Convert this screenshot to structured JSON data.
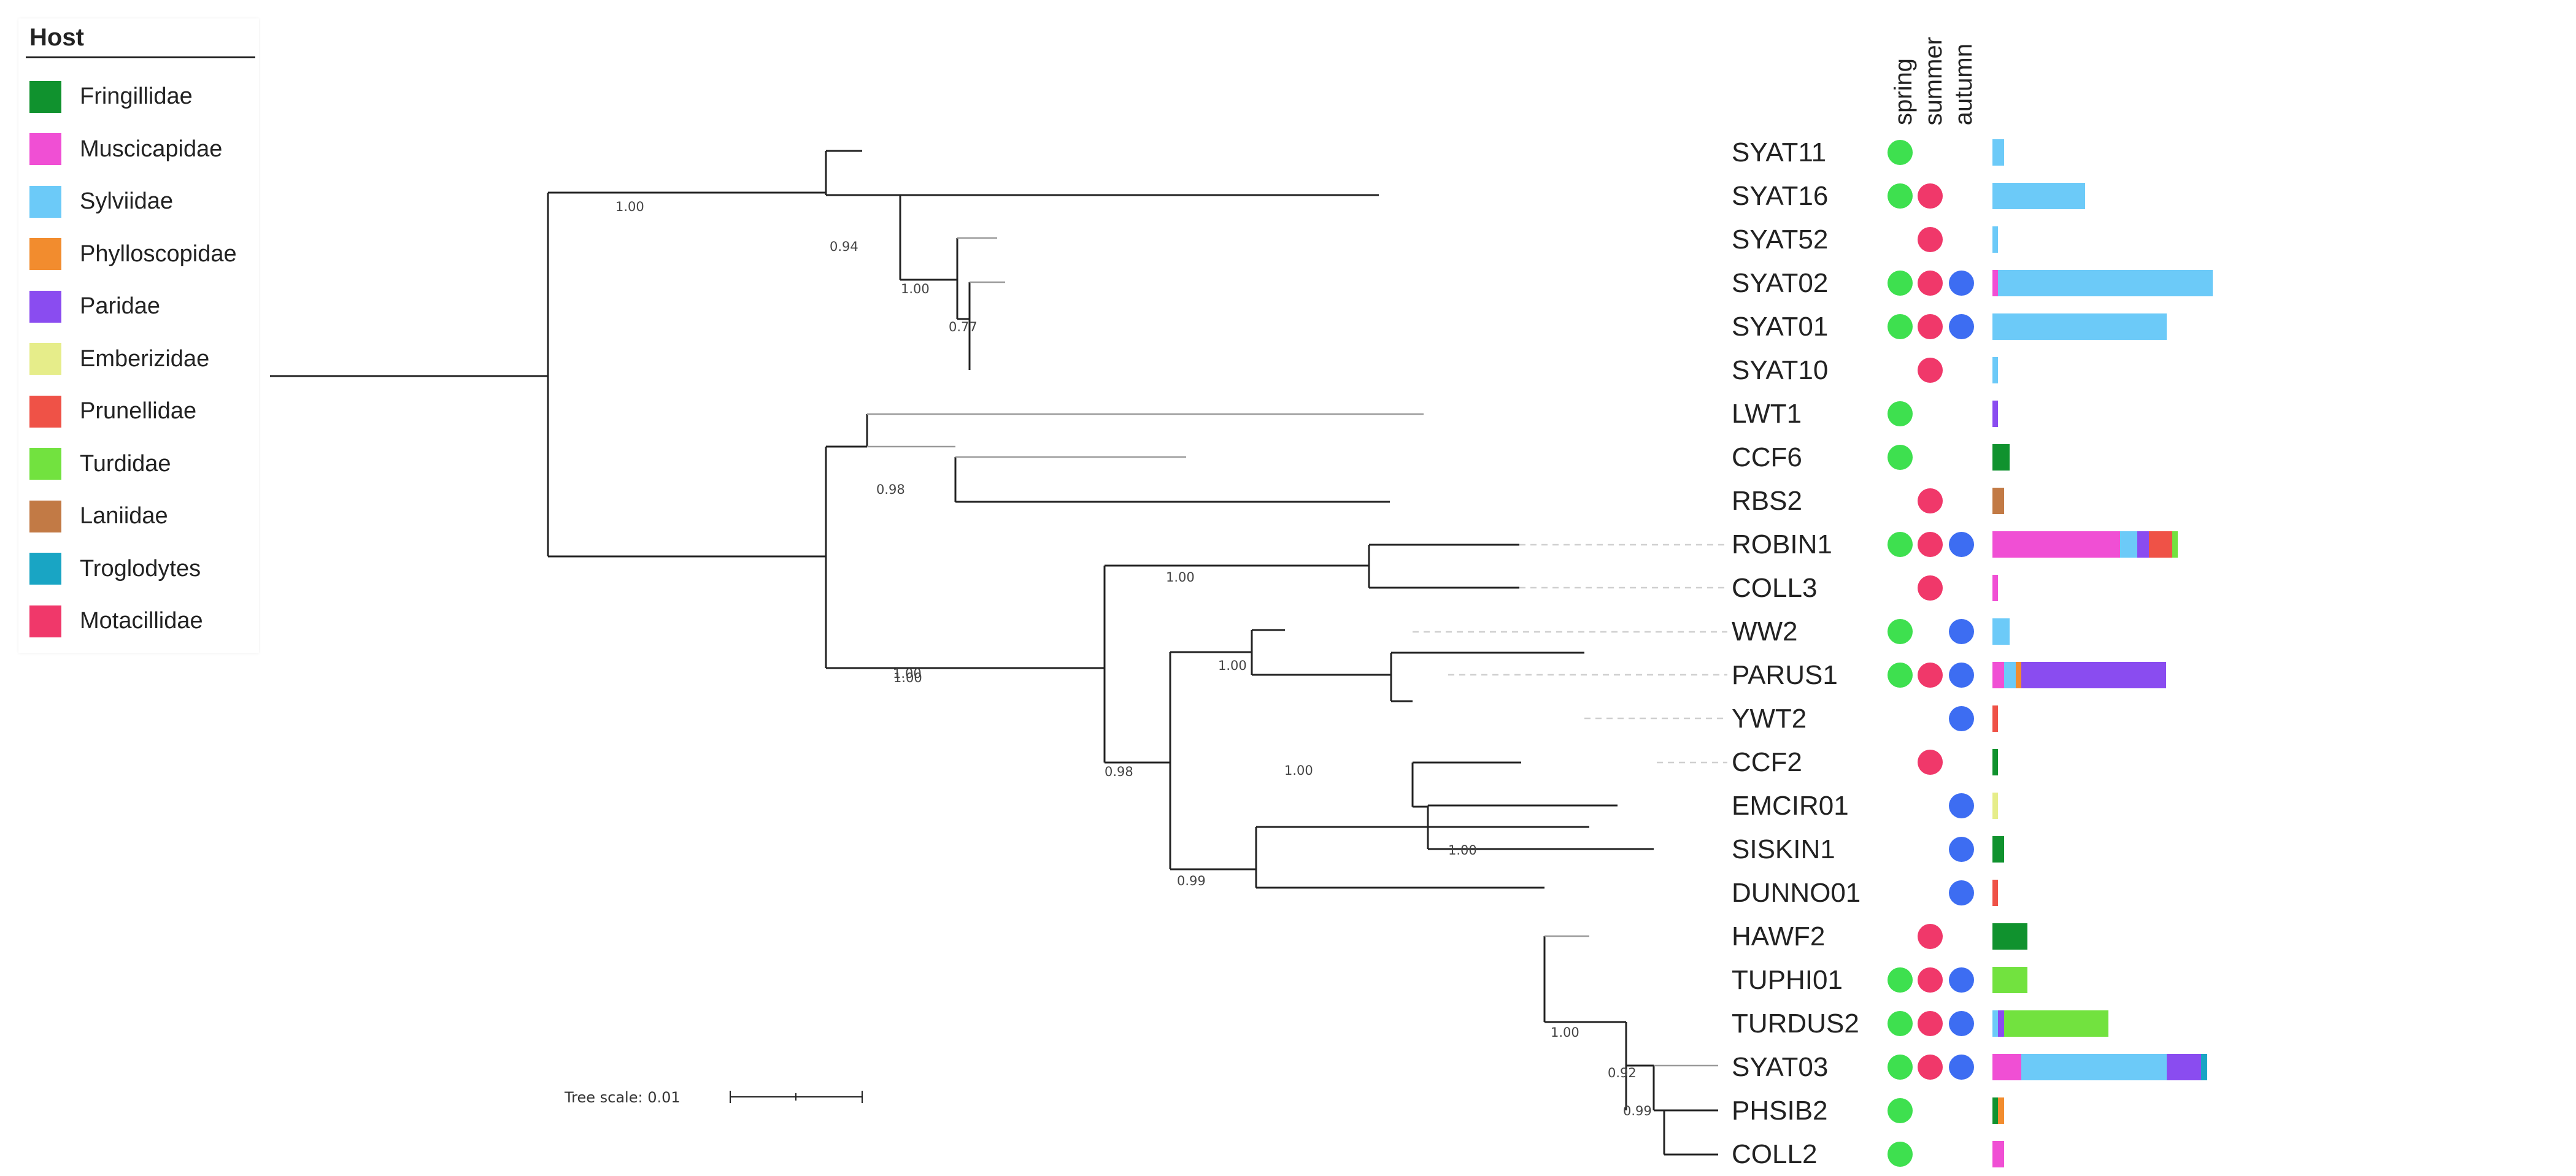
{
  "legend": {
    "title": "Host",
    "items": [
      {
        "label": "Fringillidae",
        "color": "#10922e"
      },
      {
        "label": "Muscicapidae",
        "color": "#f04fd4"
      },
      {
        "label": "Sylviidae",
        "color": "#6ccaf8"
      },
      {
        "label": "Phylloscopidae",
        "color": "#f28c2e"
      },
      {
        "label": "Paridae",
        "color": "#8a4cf0"
      },
      {
        "label": "Emberizidae",
        "color": "#e6ed8a"
      },
      {
        "label": "Prunellidae",
        "color": "#ef5247"
      },
      {
        "label": "Turdidae",
        "color": "#72e23f"
      },
      {
        "label": "Laniidae",
        "color": "#c27a45"
      },
      {
        "label": "Troglodytes",
        "color": "#19a5c4"
      },
      {
        "label": "Motacillidae",
        "color": "#f0386a"
      }
    ]
  },
  "seasons": {
    "headers": [
      "spring",
      "summer",
      "autumn"
    ],
    "colors": {
      "spring": "#3ee04f",
      "summer": "#f0386a",
      "autumn": "#3d6df2"
    }
  },
  "tree": {
    "support_values": [
      "1.00",
      "0.94",
      "1.00",
      "0.77",
      "0.98",
      "1.00",
      "1.00",
      "1.00",
      "0.98",
      "1.00",
      "1.00",
      "0.99",
      "1.00",
      "1.00",
      "0.92",
      "0.99"
    ],
    "scale_label": "Tree scale: 0.01"
  },
  "taxa": [
    {
      "label": "SYAT11",
      "spring": true,
      "summer": false,
      "autumn": false,
      "hosts": [
        {
          "family": "Sylviidae",
          "count": 2
        }
      ]
    },
    {
      "label": "SYAT16",
      "spring": true,
      "summer": true,
      "autumn": false,
      "hosts": [
        {
          "family": "Sylviidae",
          "count": 16
        }
      ]
    },
    {
      "label": "SYAT52",
      "spring": false,
      "summer": true,
      "autumn": false,
      "hosts": [
        {
          "family": "Sylviidae",
          "count": 1
        }
      ]
    },
    {
      "label": "SYAT02",
      "spring": true,
      "summer": true,
      "autumn": true,
      "hosts": [
        {
          "family": "Muscicapidae",
          "count": 1
        },
        {
          "family": "Sylviidae",
          "count": 37
        }
      ]
    },
    {
      "label": "SYAT01",
      "spring": true,
      "summer": true,
      "autumn": true,
      "hosts": [
        {
          "family": "Sylviidae",
          "count": 30
        }
      ]
    },
    {
      "label": "SYAT10",
      "spring": false,
      "summer": true,
      "autumn": false,
      "hosts": [
        {
          "family": "Sylviidae",
          "count": 1
        }
      ]
    },
    {
      "label": "LWT1",
      "spring": true,
      "summer": false,
      "autumn": false,
      "hosts": [
        {
          "family": "Paridae",
          "count": 1
        }
      ]
    },
    {
      "label": "CCF6",
      "spring": true,
      "summer": false,
      "autumn": false,
      "hosts": [
        {
          "family": "Fringillidae",
          "count": 3
        }
      ]
    },
    {
      "label": "RBS2",
      "spring": false,
      "summer": true,
      "autumn": false,
      "hosts": [
        {
          "family": "Laniidae",
          "count": 2
        }
      ]
    },
    {
      "label": "ROBIN1",
      "spring": true,
      "summer": true,
      "autumn": true,
      "hosts": [
        {
          "family": "Muscicapidae",
          "count": 22
        },
        {
          "family": "Sylviidae",
          "count": 3
        },
        {
          "family": "Paridae",
          "count": 2
        },
        {
          "family": "Prunellidae",
          "count": 4
        },
        {
          "family": "Turdidae",
          "count": 1
        }
      ]
    },
    {
      "label": "COLL3",
      "spring": false,
      "summer": true,
      "autumn": false,
      "hosts": [
        {
          "family": "Muscicapidae",
          "count": 1
        }
      ]
    },
    {
      "label": "WW2",
      "spring": true,
      "summer": false,
      "autumn": true,
      "hosts": [
        {
          "family": "Sylviidae",
          "count": 3
        }
      ]
    },
    {
      "label": "PARUS1",
      "spring": true,
      "summer": true,
      "autumn": true,
      "hosts": [
        {
          "family": "Muscicapidae",
          "count": 2
        },
        {
          "family": "Sylviidae",
          "count": 2
        },
        {
          "family": "Phylloscopidae",
          "count": 1
        },
        {
          "family": "Paridae",
          "count": 25
        }
      ]
    },
    {
      "label": "YWT2",
      "spring": false,
      "summer": false,
      "autumn": true,
      "hosts": [
        {
          "family": "Prunellidae",
          "count": 1
        }
      ]
    },
    {
      "label": "CCF2",
      "spring": false,
      "summer": true,
      "autumn": false,
      "hosts": [
        {
          "family": "Fringillidae",
          "count": 1
        }
      ]
    },
    {
      "label": "EMCIR01",
      "spring": false,
      "summer": false,
      "autumn": true,
      "hosts": [
        {
          "family": "Emberizidae",
          "count": 1
        }
      ]
    },
    {
      "label": "SISKIN1",
      "spring": false,
      "summer": false,
      "autumn": true,
      "hosts": [
        {
          "family": "Fringillidae",
          "count": 2
        }
      ]
    },
    {
      "label": "DUNNO01",
      "spring": false,
      "summer": false,
      "autumn": true,
      "hosts": [
        {
          "family": "Prunellidae",
          "count": 1
        }
      ]
    },
    {
      "label": "HAWF2",
      "spring": false,
      "summer": true,
      "autumn": false,
      "hosts": [
        {
          "family": "Fringillidae",
          "count": 6
        }
      ]
    },
    {
      "label": "TUPHI01",
      "spring": true,
      "summer": true,
      "autumn": true,
      "hosts": [
        {
          "family": "Turdidae",
          "count": 6
        }
      ]
    },
    {
      "label": "TURDUS2",
      "spring": true,
      "summer": true,
      "autumn": true,
      "hosts": [
        {
          "family": "Sylviidae",
          "count": 1
        },
        {
          "family": "Paridae",
          "count": 1
        },
        {
          "family": "Turdidae",
          "count": 18
        }
      ]
    },
    {
      "label": "SYAT03",
      "spring": true,
      "summer": true,
      "autumn": true,
      "hosts": [
        {
          "family": "Muscicapidae",
          "count": 5
        },
        {
          "family": "Sylviidae",
          "count": 25
        },
        {
          "family": "Paridae",
          "count": 6
        },
        {
          "family": "Troglodytes",
          "count": 1
        }
      ]
    },
    {
      "label": "PHSIB2",
      "spring": true,
      "summer": false,
      "autumn": false,
      "hosts": [
        {
          "family": "Fringillidae",
          "count": 1
        },
        {
          "family": "Phylloscopidae",
          "count": 1
        }
      ]
    },
    {
      "label": "COLL2",
      "spring": true,
      "summer": false,
      "autumn": false,
      "hosts": [
        {
          "family": "Muscicapidae",
          "count": 2
        }
      ]
    }
  ]
}
